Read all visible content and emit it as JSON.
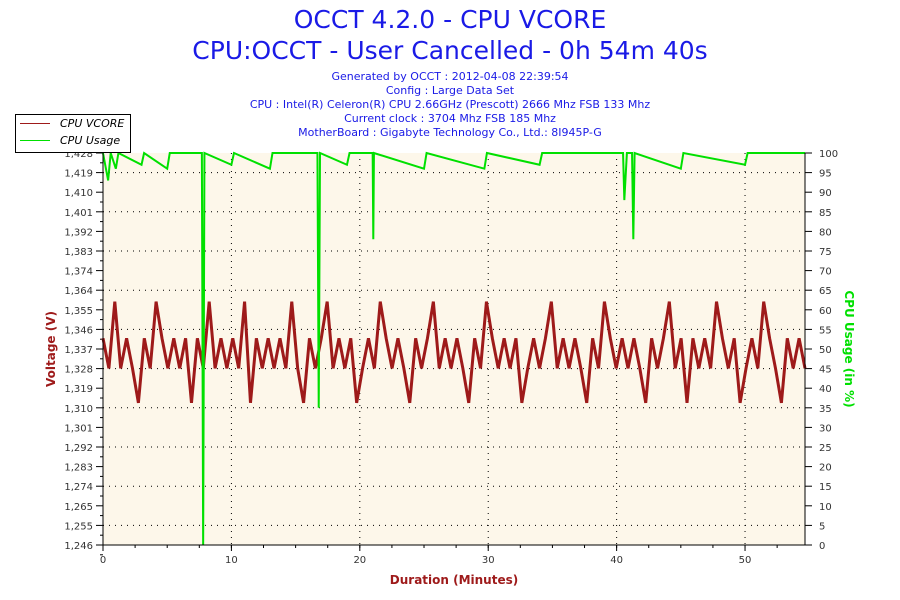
{
  "chart_data": {
    "type": "line",
    "title": "OCCT 4.2.0 - CPU VCORE",
    "subtitle": "CPU:OCCT - User Cancelled - 0h 54m 40s",
    "info": [
      "Generated by OCCT : 2012-04-08 22:39:54",
      "Config : Large Data Set",
      "CPU : Intel(R) Celeron(R) CPU 2.66GHz (Prescott) 2666 Mhz FSB 133 Mhz",
      "Current clock : 3704 Mhz FSB 185 Mhz",
      "MotherBoard : Gigabyte Technology Co., Ltd.: 8I945P-G"
    ],
    "xlabel": "Duration (Minutes)",
    "ylabel": "Voltage (V)",
    "y2label": "CPU Usage (in %)",
    "xlim": [
      0,
      54.67
    ],
    "ylim": [
      1.246,
      1.428
    ],
    "y2lim": [
      0,
      100
    ],
    "xticks": [
      "0",
      "10",
      "20",
      "30",
      "40",
      "50"
    ],
    "yticks": [
      "1,246",
      "1,255",
      "1,265",
      "1,274",
      "1,283",
      "1,292",
      "1,301",
      "1,310",
      "1,319",
      "1,328",
      "1,337",
      "1,346",
      "1,355",
      "1,364",
      "1,374",
      "1,383",
      "1,392",
      "1,401",
      "1,410",
      "1,419",
      "1,428"
    ],
    "y2ticks": [
      "0",
      "5",
      "10",
      "15",
      "20",
      "25",
      "30",
      "35",
      "40",
      "45",
      "50",
      "55",
      "60",
      "65",
      "70",
      "75",
      "80",
      "85",
      "90",
      "95",
      "100"
    ],
    "grid": true,
    "legend_position": "top-left",
    "colors": {
      "vcore": "#9e1a1a",
      "usage": "#00e000",
      "bg": "#fdf7ea",
      "blue": "#1a1ae6"
    },
    "series": [
      {
        "name": "CPU VCORE",
        "axis": "left",
        "values": [
          1.342,
          1.328,
          1.359,
          1.328,
          1.342,
          1.328,
          1.312,
          1.342,
          1.328,
          1.359,
          1.342,
          1.328,
          1.342,
          1.328,
          1.342,
          1.312,
          1.342,
          1.328,
          1.359,
          1.328,
          1.342,
          1.328,
          1.342,
          1.328,
          1.359,
          1.312,
          1.342,
          1.328,
          1.342,
          1.328,
          1.342,
          1.328,
          1.359,
          1.328,
          1.312,
          1.342,
          1.328,
          1.342,
          1.359,
          1.328,
          1.342,
          1.328,
          1.342,
          1.312,
          1.328,
          1.342,
          1.328,
          1.359,
          1.342,
          1.328,
          1.342,
          1.328,
          1.312,
          1.342,
          1.328,
          1.342,
          1.359,
          1.328,
          1.342,
          1.328,
          1.342,
          1.328,
          1.312,
          1.342,
          1.328,
          1.359,
          1.342,
          1.328,
          1.342,
          1.328,
          1.342,
          1.312,
          1.328,
          1.342,
          1.328,
          1.342,
          1.359,
          1.328,
          1.342,
          1.328,
          1.342,
          1.328,
          1.312,
          1.342,
          1.328,
          1.359,
          1.342,
          1.328,
          1.342,
          1.328,
          1.342,
          1.328,
          1.312,
          1.342,
          1.328,
          1.342,
          1.359,
          1.328,
          1.342,
          1.312,
          1.342,
          1.328,
          1.342,
          1.328,
          1.359,
          1.342,
          1.328,
          1.342,
          1.312,
          1.328,
          1.342,
          1.328,
          1.359,
          1.342,
          1.328,
          1.312,
          1.342,
          1.328,
          1.342,
          1.328
        ]
      },
      {
        "name": "CPU Usage",
        "axis": "right",
        "points": [
          [
            0,
            100
          ],
          [
            0.4,
            93
          ],
          [
            0.6,
            100
          ],
          [
            1,
            96
          ],
          [
            1.2,
            100
          ],
          [
            3,
            97
          ],
          [
            3.2,
            100
          ],
          [
            5,
            96
          ],
          [
            5.2,
            100
          ],
          [
            7.7,
            100
          ],
          [
            7.8,
            0
          ],
          [
            7.9,
            100
          ],
          [
            10,
            97
          ],
          [
            10.2,
            100
          ],
          [
            13,
            96
          ],
          [
            13.2,
            100
          ],
          [
            16.7,
            100
          ],
          [
            16.8,
            35
          ],
          [
            16.9,
            100
          ],
          [
            19,
            97
          ],
          [
            19.2,
            100
          ],
          [
            21,
            100
          ],
          [
            21.05,
            78
          ],
          [
            21.1,
            100
          ],
          [
            25,
            96
          ],
          [
            25.2,
            100
          ],
          [
            29.7,
            96
          ],
          [
            29.9,
            100
          ],
          [
            34,
            97
          ],
          [
            34.2,
            100
          ],
          [
            40.5,
            100
          ],
          [
            40.6,
            88
          ],
          [
            40.8,
            100
          ],
          [
            41.2,
            100
          ],
          [
            41.3,
            78
          ],
          [
            41.4,
            100
          ],
          [
            45,
            96
          ],
          [
            45.2,
            100
          ],
          [
            50,
            97
          ],
          [
            50.2,
            100
          ],
          [
            54.67,
            100
          ]
        ]
      }
    ]
  }
}
